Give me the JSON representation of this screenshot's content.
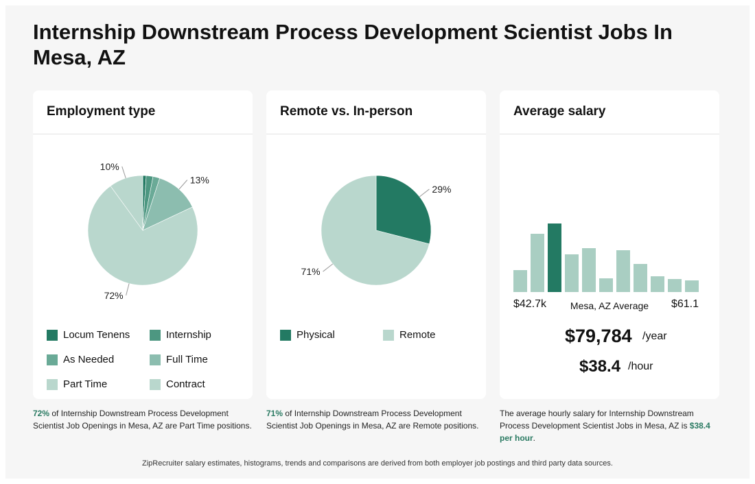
{
  "page_title": "Internship Downstream Process Development Scientist Jobs In Mesa, AZ",
  "cards": {
    "employment": {
      "heading": "Employment type",
      "legend": [
        {
          "label": "Locum Tenens",
          "color": "#237a63"
        },
        {
          "label": "Internship",
          "color": "#4d9781"
        },
        {
          "label": "As Needed",
          "color": "#6aaa97"
        },
        {
          "label": "Full Time",
          "color": "#8cbdaf"
        },
        {
          "label": "Part Time",
          "color": "#b9d7cd"
        },
        {
          "label": "Contract",
          "color": "#b9d7cd"
        }
      ],
      "caption_highlight": "72%",
      "caption_text": " of Internship Downstream Process Development Scientist Job Openings in Mesa, AZ are Part Time positions."
    },
    "remote": {
      "heading": "Remote vs. In-person",
      "legend": [
        {
          "label": "Physical",
          "color": "#237a63"
        },
        {
          "label": "Remote",
          "color": "#b9d7cd"
        }
      ],
      "caption_highlight": "71%",
      "caption_text": " of Internship Downstream Process Development Scientist Job Openings in Mesa, AZ are Remote positions."
    },
    "salary": {
      "heading": "Average salary",
      "range_low": "$42.7k",
      "range_mid": "Mesa, AZ Average",
      "range_high": "$61.1",
      "yearly_value": "$79,784",
      "yearly_unit": "/year",
      "hourly_value": "$38.4",
      "hourly_unit": "/hour",
      "caption_text": "The average hourly salary for Internship Downstream Process Development Scientist Jobs in Mesa, AZ is ",
      "caption_highlight": "$38.4 per hour",
      "caption_end": "."
    }
  },
  "footer": "ZipRecruiter salary estimates, histograms, trends and comparisons are derived from both employer job postings and third party data sources.",
  "chart_data": [
    {
      "type": "pie",
      "title": "Employment type",
      "labels": [
        "Locum Tenens",
        "Internship",
        "As Needed",
        "Full Time",
        "Part Time",
        "Contract"
      ],
      "values": [
        1,
        2,
        2,
        13,
        72,
        10
      ],
      "colors": [
        "#237a63",
        "#4d9781",
        "#6aaa97",
        "#8cbdaf",
        "#b9d7cd",
        "#b9d7cd"
      ],
      "shown_labels": [
        "",
        "",
        "",
        "13%",
        "72%",
        "10%"
      ]
    },
    {
      "type": "pie",
      "title": "Remote vs. In-person",
      "labels": [
        "Physical",
        "Remote"
      ],
      "values": [
        29,
        71
      ],
      "colors": [
        "#237a63",
        "#b9d7cd"
      ],
      "shown_labels": [
        "29%",
        "71%"
      ]
    },
    {
      "type": "bar",
      "title": "Average salary",
      "values": [
        32,
        85,
        100,
        55,
        64,
        20,
        61,
        41,
        23,
        19,
        17
      ],
      "highlight_index": 2,
      "highlight_color": "#237a63",
      "bar_color": "#a9cec2"
    }
  ]
}
